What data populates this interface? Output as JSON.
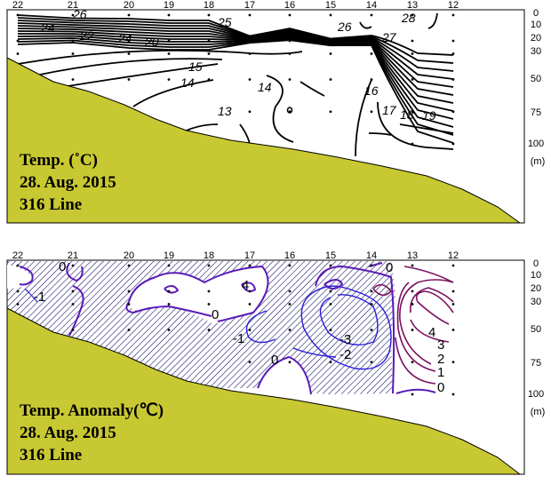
{
  "chart_data": [
    {
      "type": "contour",
      "title_lines": [
        "Temp. (˚C)",
        "28. Aug. 2015",
        "316 Line"
      ],
      "x_stations": [
        "22",
        "21",
        "20",
        "19",
        "18",
        "17",
        "16",
        "15",
        "14",
        "13",
        "12"
      ],
      "y_ticks": [
        "0",
        "10",
        "20",
        "30",
        "50",
        "75",
        "100"
      ],
      "y_unit": "(m)",
      "ylim": [
        0,
        100
      ],
      "contour_labels": [
        "24",
        "26",
        "22",
        "24",
        "20",
        "25",
        "26",
        "28",
        "27",
        "15",
        "14",
        "14",
        "13",
        "16",
        "17",
        "18",
        "19"
      ],
      "colors": {
        "lines": "#000000",
        "seabed": "#c8c832"
      }
    },
    {
      "type": "contour",
      "title_lines": [
        "Temp. Anomaly(℃)",
        "28. Aug. 2015",
        "316 Line"
      ],
      "x_stations": [
        "22",
        "21",
        "20",
        "19",
        "18",
        "17",
        "16",
        "15",
        "14",
        "13",
        "12"
      ],
      "y_ticks": [
        "0",
        "10",
        "20",
        "30",
        "50",
        "75",
        "100"
      ],
      "y_unit": "(m)",
      "ylim": [
        0,
        100
      ],
      "contour_labels": [
        "0",
        "-1",
        "0",
        "4",
        "-1",
        "0",
        "-3",
        "-2",
        "0",
        "4",
        "3",
        "2",
        "1",
        "0"
      ],
      "colors": {
        "negative": "#2a1ad8",
        "zero": "#5a1ab8",
        "positive": "#7a1060",
        "hatch": "#1a1a6a",
        "seabed": "#c8c832"
      }
    }
  ]
}
